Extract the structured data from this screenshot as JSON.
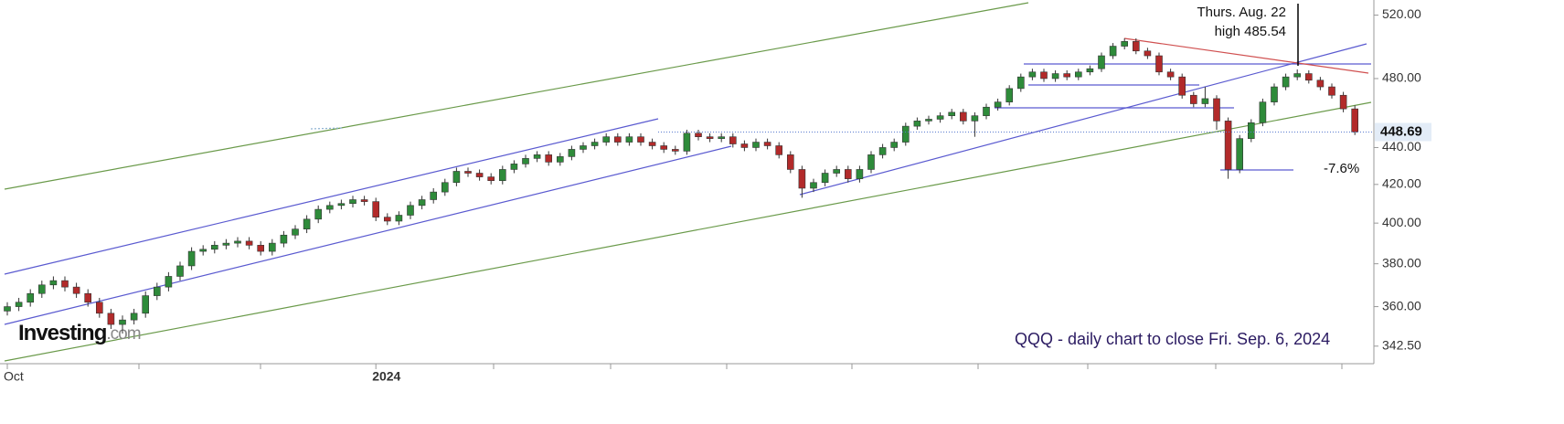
{
  "chart_data": {
    "type": "candlestick",
    "title": "QQQ - daily chart to close Fri. Sep. 6, 2024",
    "annotations": [
      "Thurs. Aug. 22",
      "high 485.54",
      "-7.6%"
    ],
    "watermark": {
      "name": "Investing",
      "suffix": ".com"
    },
    "log_scale": true,
    "up_color": "#2e8b3a",
    "down_color": "#b22a2a",
    "ylim": [
      335,
      530
    ],
    "yticks": [
      {
        "value": 342.5,
        "label": "342.50"
      },
      {
        "value": 360,
        "label": "360.00"
      },
      {
        "value": 380,
        "label": "380.00"
      },
      {
        "value": 400,
        "label": "400.00"
      },
      {
        "value": 420,
        "label": "420.00"
      },
      {
        "value": 440,
        "label": "440.00"
      },
      {
        "value": 480,
        "label": "480.00"
      },
      {
        "value": 520,
        "label": "520.00"
      }
    ],
    "xticks": [
      {
        "value": 0,
        "label": "Oct"
      },
      {
        "value": 32,
        "label": "2024"
      }
    ],
    "open": [
      358,
      360,
      362,
      366,
      370,
      372,
      369,
      366,
      362,
      357,
      352,
      354,
      357,
      365,
      369,
      374,
      379,
      386,
      387,
      389,
      390,
      391,
      389,
      386,
      390,
      394,
      397,
      402,
      407,
      409,
      410,
      412,
      411,
      403,
      401,
      404,
      409,
      412,
      416,
      421,
      427,
      426,
      424,
      422,
      428,
      431,
      434,
      436,
      432,
      435,
      439,
      441,
      443,
      446,
      443,
      446,
      443,
      441,
      439,
      438,
      448,
      446,
      445,
      446,
      442,
      440,
      443,
      441,
      436,
      428,
      418,
      421,
      426,
      428,
      423,
      428,
      436,
      440,
      443,
      452,
      455,
      456,
      458,
      460,
      455,
      458,
      463,
      466,
      474,
      481,
      484,
      480,
      483,
      481,
      484,
      486,
      494,
      500,
      503,
      497,
      494,
      484,
      481,
      470,
      465,
      468,
      455,
      428,
      445,
      454,
      466,
      475,
      481,
      483,
      479,
      475,
      470,
      462
    ],
    "high": [
      362,
      364,
      368,
      372,
      374,
      374,
      371,
      368,
      364,
      359,
      356,
      359,
      367,
      371,
      376,
      381,
      388,
      389,
      391,
      392,
      393,
      393,
      391,
      392,
      396,
      399,
      404,
      409,
      411,
      412,
      414,
      414,
      413,
      405,
      406,
      411,
      414,
      418,
      423,
      429,
      429,
      428,
      426,
      430,
      433,
      436,
      438,
      438,
      437,
      441,
      443,
      445,
      448,
      448,
      448,
      448,
      445,
      443,
      441,
      450,
      450,
      448,
      448,
      448,
      444,
      445,
      445,
      443,
      438,
      430,
      423,
      428,
      430,
      430,
      430,
      438,
      442,
      445,
      454,
      457,
      458,
      460,
      462,
      462,
      460,
      465,
      468,
      476,
      483,
      486,
      486,
      485,
      485,
      486,
      488,
      496,
      502,
      505,
      505,
      499,
      496,
      486,
      483,
      472,
      475,
      470,
      457,
      447,
      456,
      468,
      477,
      483,
      485.54,
      485,
      481,
      477,
      472,
      464
    ],
    "low": [
      356,
      358,
      360,
      364,
      368,
      367,
      364,
      360,
      355,
      350,
      348,
      352,
      355,
      363,
      367,
      372,
      377,
      384,
      385,
      387,
      388,
      387,
      384,
      384,
      388,
      392,
      395,
      400,
      405,
      407,
      408,
      409,
      401,
      399,
      399,
      402,
      407,
      410,
      414,
      419,
      424,
      422,
      420,
      420,
      426,
      429,
      432,
      430,
      430,
      433,
      437,
      439,
      441,
      441,
      441,
      441,
      439,
      437,
      436,
      436,
      444,
      443,
      443,
      440,
      438,
      438,
      439,
      434,
      426,
      413,
      416,
      419,
      424,
      421,
      421,
      426,
      434,
      438,
      441,
      450,
      453,
      454,
      456,
      453,
      446,
      456,
      461,
      464,
      472,
      479,
      478,
      478,
      479,
      479,
      482,
      484,
      492,
      498,
      495,
      492,
      482,
      479,
      468,
      463,
      463,
      450,
      423,
      426,
      443,
      452,
      464,
      473,
      479,
      477,
      473,
      468,
      460,
      447
    ],
    "close": [
      360,
      362,
      366,
      370,
      372,
      369,
      366,
      362,
      357,
      352,
      354,
      357,
      365,
      369,
      374,
      379,
      386,
      387,
      389,
      390,
      391,
      389,
      386,
      390,
      394,
      397,
      402,
      407,
      409,
      410,
      412,
      411,
      403,
      401,
      404,
      409,
      412,
      416,
      421,
      427,
      426,
      424,
      422,
      428,
      431,
      434,
      436,
      432,
      435,
      439,
      441,
      443,
      446,
      443,
      446,
      443,
      441,
      439,
      438,
      448,
      446,
      445,
      446,
      442,
      440,
      443,
      441,
      436,
      428,
      418,
      421,
      426,
      428,
      423,
      428,
      436,
      440,
      443,
      452,
      455,
      456,
      458,
      460,
      455,
      458,
      463,
      466,
      474,
      481,
      484,
      480,
      483,
      481,
      484,
      486,
      494,
      500,
      503,
      497,
      494,
      484,
      481,
      470,
      465,
      468,
      455,
      428,
      445,
      454,
      466,
      475,
      481,
      483,
      479,
      475,
      470,
      462,
      448.69
    ]
  }
}
